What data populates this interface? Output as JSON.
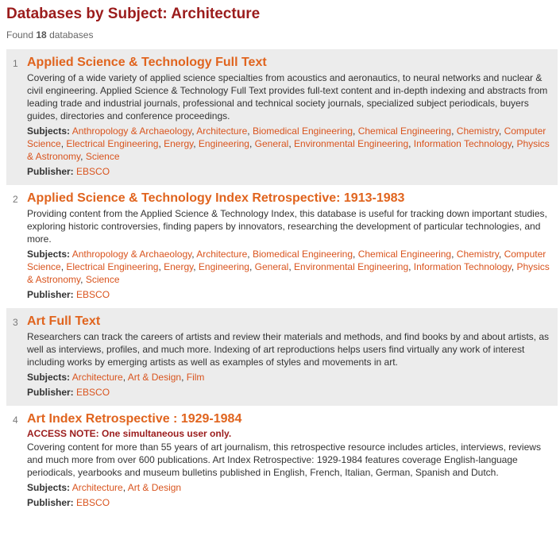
{
  "header": {
    "title": "Databases by Subject: Architecture",
    "found_prefix": "Found",
    "found_count": "18",
    "found_suffix": "databases"
  },
  "labels": {
    "subjects": "Subjects:",
    "publisher": "Publisher:"
  },
  "results": [
    {
      "num": "1",
      "title": "Applied Science & Technology Full Text",
      "access_note": "",
      "description": "Covering of a wide variety of applied science specialties from acoustics and aeronautics, to neural networks and nuclear & civil engineering. Applied Science & Technology Full Text provides full-text content and in-depth indexing and abstracts from leading trade and industrial journals, professional and technical society journals, specialized subject periodicals, buyers guides, directories and conference proceedings.",
      "subjects": [
        "Anthropology & Archaeology",
        "Architecture",
        "Biomedical Engineering",
        "Chemical Engineering",
        "Chemistry",
        "Computer Science",
        "Electrical Engineering",
        "Energy",
        "Engineering",
        "General",
        "Environmental Engineering",
        "Information Technology",
        "Physics & Astronomy",
        "Science"
      ],
      "publisher": "EBSCO"
    },
    {
      "num": "2",
      "title": "Applied Science & Technology Index Retrospective: 1913-1983",
      "access_note": "",
      "description": "Providing content from the Applied Science & Technology Index, this database is useful for tracking down important studies, exploring historic controversies, finding papers by innovators, researching the development of particular technologies, and more.",
      "subjects": [
        "Anthropology & Archaeology",
        "Architecture",
        "Biomedical Engineering",
        "Chemical Engineering",
        "Chemistry",
        "Computer Science",
        "Electrical Engineering",
        "Energy",
        "Engineering",
        "General",
        "Environmental Engineering",
        "Information Technology",
        "Physics & Astronomy",
        "Science"
      ],
      "publisher": "EBSCO"
    },
    {
      "num": "3",
      "title": "Art Full Text",
      "access_note": "",
      "description": "Researchers can track the careers of artists and review their materials and methods, and find books by and about artists, as well as interviews, profiles, and much more. Indexing of art reproductions helps users find virtually any work of interest including works by emerging artists as well as examples of styles and movements in art.",
      "subjects": [
        "Architecture",
        "Art & Design",
        "Film"
      ],
      "publisher": "EBSCO"
    },
    {
      "num": "4",
      "title": "Art Index Retrospective : 1929-1984",
      "access_note": "ACCESS NOTE: One simultaneous user only.",
      "description": "Covering content for more than 55 years of art journalism, this retrospective resource includes articles, interviews, reviews and much more from over 600 publications. Art Index Retrospective: 1929-1984 features coverage English-language periodicals, yearbooks and museum bulletins published in English, French, Italian, German, Spanish and Dutch.",
      "subjects": [
        "Architecture",
        "Art & Design"
      ],
      "publisher": "EBSCO"
    }
  ]
}
